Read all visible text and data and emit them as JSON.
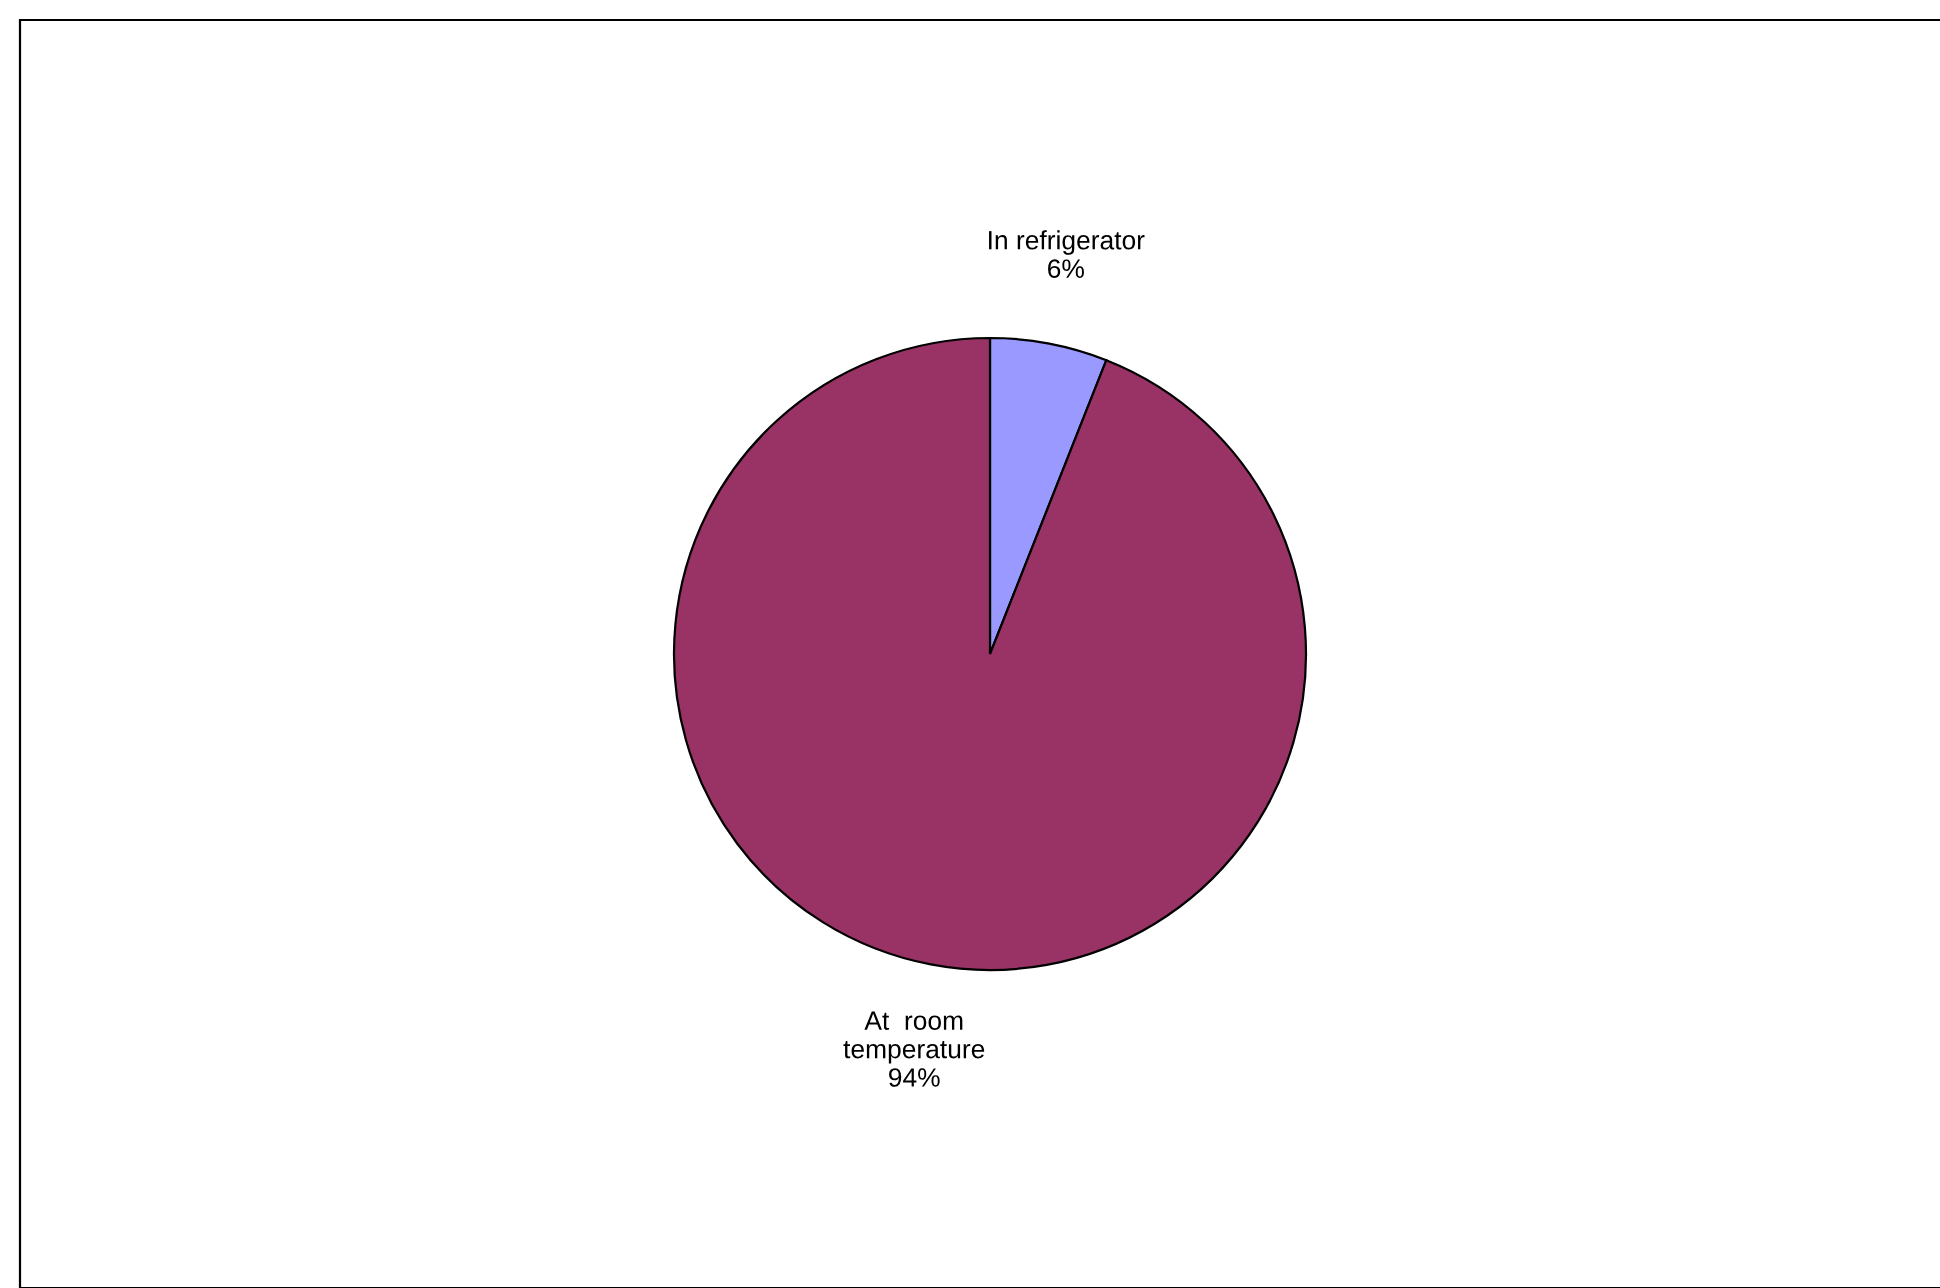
{
  "chart_data": {
    "type": "pie",
    "categories": [
      "In refrigerator",
      "At  room\ntemperature"
    ],
    "values": [
      6,
      94
    ],
    "value_labels": [
      "6%",
      "94%"
    ],
    "colors": [
      "#9999ff",
      "#993366"
    ]
  }
}
